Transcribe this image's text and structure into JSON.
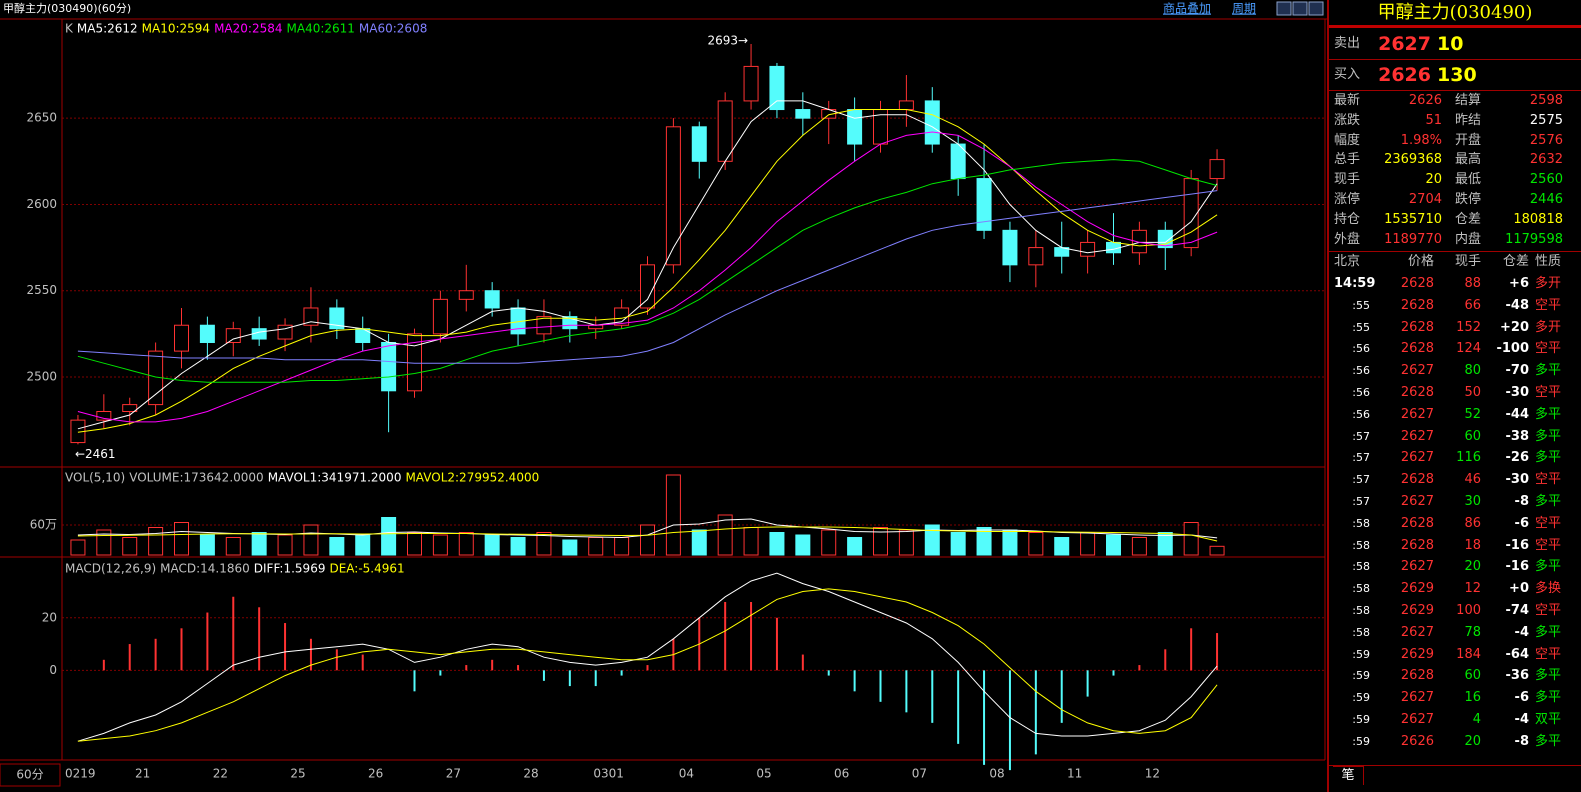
{
  "header": {
    "title": "甲醇主力(030490)(60分)",
    "links": [
      "商品叠加",
      "周期"
    ]
  },
  "chart_data": [
    {
      "type": "candlestick",
      "prefix": "K",
      "xlabel": "60分",
      "categories": [
        "0219",
        null,
        null,
        "21",
        null,
        null,
        "22",
        null,
        null,
        "25",
        null,
        null,
        "26",
        null,
        null,
        "27",
        null,
        null,
        "28",
        null,
        null,
        "0301",
        null,
        null,
        "04",
        null,
        null,
        "05",
        null,
        null,
        "06",
        null,
        null,
        "07",
        null,
        null,
        "08",
        null,
        null,
        "11",
        null,
        null,
        "12",
        null,
        null
      ],
      "open": [
        2462,
        2475,
        2480,
        2484,
        2515,
        2530,
        2520,
        2528,
        2522,
        2530,
        2540,
        2528,
        2520,
        2492,
        2525,
        2545,
        2550,
        2540,
        2525,
        2535,
        2528,
        2530,
        2540,
        2565,
        2645,
        2625,
        2660,
        2680,
        2655,
        2650,
        2655,
        2635,
        2655,
        2660,
        2635,
        2615,
        2585,
        2565,
        2575,
        2570,
        2578,
        2572,
        2585,
        2575,
        2615
      ],
      "high": [
        2478,
        2490,
        2488,
        2520,
        2540,
        2535,
        2532,
        2535,
        2534,
        2552,
        2545,
        2535,
        2525,
        2528,
        2550,
        2565,
        2555,
        2545,
        2545,
        2538,
        2535,
        2545,
        2570,
        2650,
        2648,
        2665,
        2693,
        2682,
        2665,
        2660,
        2662,
        2660,
        2675,
        2668,
        2640,
        2635,
        2590,
        2585,
        2590,
        2585,
        2595,
        2590,
        2590,
        2620,
        2632
      ],
      "low": [
        2461,
        2470,
        2472,
        2478,
        2505,
        2510,
        2512,
        2518,
        2515,
        2520,
        2522,
        2515,
        2468,
        2488,
        2520,
        2538,
        2535,
        2518,
        2520,
        2520,
        2522,
        2528,
        2536,
        2560,
        2615,
        2620,
        2655,
        2650,
        2640,
        2635,
        2625,
        2630,
        2645,
        2630,
        2605,
        2580,
        2555,
        2552,
        2560,
        2560,
        2565,
        2565,
        2562,
        2570,
        2608
      ],
      "close": [
        2475,
        2480,
        2484,
        2515,
        2530,
        2520,
        2528,
        2522,
        2530,
        2540,
        2528,
        2520,
        2492,
        2525,
        2545,
        2550,
        2540,
        2525,
        2535,
        2528,
        2530,
        2540,
        2565,
        2645,
        2625,
        2660,
        2680,
        2655,
        2650,
        2655,
        2635,
        2655,
        2660,
        2635,
        2615,
        2585,
        2565,
        2575,
        2570,
        2578,
        2572,
        2585,
        2575,
        2615,
        2626
      ],
      "up_color": "#ff3232",
      "down_color": "#54fcfc",
      "legend_color": "#c0c0c0",
      "lines": [
        {
          "name": "MA5:2612",
          "color": "#ffffff",
          "values": [
            2470,
            2474,
            2478,
            2490,
            2502,
            2512,
            2522,
            2526,
            2528,
            2532,
            2530,
            2528,
            2520,
            2518,
            2522,
            2530,
            2538,
            2540,
            2538,
            2534,
            2530,
            2532,
            2545,
            2575,
            2600,
            2625,
            2648,
            2660,
            2660,
            2655,
            2650,
            2652,
            2652,
            2645,
            2635,
            2620,
            2600,
            2585,
            2575,
            2572,
            2574,
            2578,
            2578,
            2590,
            2612
          ]
        },
        {
          "name": "MA10:2594",
          "color": "#ffff00",
          "values": [
            2468,
            2470,
            2473,
            2478,
            2486,
            2495,
            2505,
            2512,
            2518,
            2524,
            2527,
            2528,
            2526,
            2524,
            2524,
            2526,
            2530,
            2532,
            2534,
            2534,
            2533,
            2534,
            2538,
            2552,
            2568,
            2585,
            2605,
            2625,
            2640,
            2652,
            2655,
            2655,
            2655,
            2652,
            2645,
            2635,
            2622,
            2608,
            2595,
            2585,
            2578,
            2576,
            2577,
            2584,
            2594
          ]
        },
        {
          "name": "MA20:2584",
          "color": "#ff00ff",
          "values": [
            2480,
            2476,
            2474,
            2474,
            2476,
            2480,
            2486,
            2492,
            2498,
            2504,
            2510,
            2515,
            2518,
            2520,
            2522,
            2524,
            2526,
            2528,
            2529,
            2530,
            2530,
            2531,
            2533,
            2540,
            2550,
            2562,
            2575,
            2590,
            2602,
            2614,
            2625,
            2635,
            2640,
            2642,
            2640,
            2632,
            2622,
            2610,
            2600,
            2590,
            2582,
            2578,
            2576,
            2578,
            2584
          ]
        },
        {
          "name": "MA40:2611",
          "color": "#00e600",
          "values": [
            2512,
            2508,
            2504,
            2500,
            2498,
            2497,
            2497,
            2497,
            2497,
            2498,
            2498,
            2499,
            2500,
            2502,
            2505,
            2510,
            2515,
            2518,
            2521,
            2524,
            2526,
            2528,
            2531,
            2537,
            2545,
            2555,
            2565,
            2575,
            2585,
            2592,
            2598,
            2603,
            2607,
            2612,
            2615,
            2617,
            2620,
            2622,
            2624,
            2625,
            2626,
            2625,
            2620,
            2615,
            2611
          ]
        },
        {
          "name": "MA60:2608",
          "color": "#8080ff",
          "values": [
            2515,
            2514,
            2513,
            2512,
            2511,
            2511,
            2511,
            2511,
            2510,
            2510,
            2510,
            2510,
            2509,
            2508,
            2508,
            2508,
            2508,
            2508,
            2509,
            2510,
            2511,
            2512,
            2515,
            2520,
            2528,
            2536,
            2543,
            2550,
            2556,
            2562,
            2568,
            2574,
            2580,
            2585,
            2588,
            2590,
            2592,
            2594,
            2596,
            2598,
            2600,
            2602,
            2604,
            2606,
            2608
          ]
        }
      ],
      "annotations": {
        "high": "2693→",
        "low": "←2461"
      },
      "ylim": [
        2449,
        2704
      ],
      "yticks": [
        2500,
        2550,
        2600,
        2650
      ],
      "grid": true
    },
    {
      "type": "volume",
      "prefix": "VOL(5,10)",
      "series": [
        {
          "name": "VOLUME:173642.0000",
          "color": "#c0c0c0",
          "values": [
            300000,
            500000,
            350000,
            550000,
            650000,
            400000,
            350000,
            450000,
            400000,
            600000,
            350000,
            400000,
            750000,
            450000,
            400000,
            450000,
            400000,
            350000,
            450000,
            300000,
            350000,
            350000,
            600000,
            1600000,
            500000,
            800000,
            550000,
            450000,
            400000,
            500000,
            350000,
            550000,
            500000,
            600000,
            450000,
            550000,
            500000,
            450000,
            350000,
            450000,
            400000,
            350000,
            450000,
            650000,
            173642
          ]
        }
      ],
      "lines": [
        {
          "name": "MAVOL1:341971.2000",
          "color": "#ffffff",
          "values": [
            400000,
            420000,
            410000,
            430000,
            470000,
            450000,
            430000,
            420000,
            410000,
            440000,
            420000,
            400000,
            450000,
            460000,
            440000,
            430000,
            410000,
            400000,
            390000,
            370000,
            360000,
            350000,
            400000,
            600000,
            620000,
            700000,
            720000,
            600000,
            560000,
            520000,
            470000,
            460000,
            470000,
            500000,
            490000,
            500000,
            500000,
            480000,
            450000,
            440000,
            420000,
            400000,
            390000,
            400000,
            341971.2
          ]
        },
        {
          "name": "MAVOL2:279952.4000",
          "color": "#ffff00",
          "values": [
            380000,
            390000,
            395000,
            400000,
            410000,
            420000,
            425000,
            425000,
            420000,
            420000,
            425000,
            420000,
            425000,
            430000,
            430000,
            430000,
            420000,
            415000,
            410000,
            400000,
            395000,
            390000,
            395000,
            450000,
            480000,
            520000,
            550000,
            560000,
            560000,
            560000,
            550000,
            530000,
            510000,
            490000,
            480000,
            470000,
            470000,
            470000,
            460000,
            455000,
            450000,
            440000,
            430000,
            400000,
            279952.4
          ]
        }
      ],
      "ylim": [
        0,
        1700000
      ],
      "yticks": [
        {
          "value": 600000,
          "label": "60万"
        }
      ],
      "grid": true
    },
    {
      "type": "macd",
      "prefix": "MACD(12,26,9)",
      "lines": [
        {
          "name": "DIFF:1.5969",
          "color": "#ffffff",
          "values": [
            -27,
            -24,
            -20,
            -17,
            -12,
            -5,
            2,
            5,
            7,
            8,
            9,
            10,
            8,
            3,
            5,
            8,
            10,
            9,
            5,
            3,
            2,
            3,
            5,
            12,
            20,
            28,
            34,
            37,
            33,
            30,
            26,
            22,
            18,
            12,
            3,
            -8,
            -18,
            -24,
            -25,
            -25,
            -24,
            -23,
            -19,
            -10,
            1.5969
          ]
        },
        {
          "name": "DEA:-5.4961",
          "color": "#ffff00",
          "values": [
            -27,
            -26,
            -25,
            -23,
            -20,
            -16,
            -12,
            -7,
            -2,
            2,
            5,
            7,
            8,
            7,
            6,
            7,
            8,
            8,
            7,
            6,
            5,
            4,
            4,
            6,
            10,
            15,
            21,
            27,
            30,
            31,
            30,
            28,
            26,
            22,
            17,
            10,
            1,
            -8,
            -15,
            -20,
            -23,
            -24,
            -23,
            -18,
            -5.4961
          ]
        }
      ],
      "series": [
        {
          "name": "MACD:14.1860",
          "color": "#c0c0c0",
          "values": [
            0,
            4,
            10,
            12,
            16,
            22,
            28,
            24,
            18,
            12,
            8,
            6,
            0,
            -8,
            -2,
            2,
            4,
            2,
            -4,
            -6,
            -6,
            -2,
            2,
            12,
            20,
            26,
            26,
            20,
            6,
            -2,
            -8,
            -12,
            -16,
            -20,
            -28,
            -36,
            -38,
            -32,
            -20,
            -10,
            -2,
            2,
            8,
            16,
            14.186
          ]
        }
      ],
      "up_color": "#ff3232",
      "down_color": "#54fcfc",
      "ylim": [
        -33,
        42
      ],
      "yticks": [
        0,
        20
      ],
      "grid": true
    }
  ],
  "quote": {
    "title": "甲醇主力(030490)",
    "ask": {
      "label": "卖出",
      "price": 2627,
      "qty": 10
    },
    "bid": {
      "label": "买入",
      "price": 2626,
      "qty": 130
    },
    "stats": [
      [
        "最新",
        2626,
        "结算",
        2598
      ],
      [
        "涨跌",
        51,
        "昨结",
        2575
      ],
      [
        "幅度",
        "1.98%",
        "开盘",
        2576
      ],
      [
        "总手",
        2369368,
        "最高",
        2632
      ],
      [
        "现手",
        20,
        "最低",
        2560
      ],
      [
        "涨停",
        2704,
        "跌停",
        2446
      ],
      [
        "持仓",
        1535710,
        "仓差",
        180818
      ],
      [
        "外盘",
        1189770,
        "内盘",
        1179598
      ]
    ],
    "stat_colors": [
      [
        "#ff3232",
        "#ff3232"
      ],
      [
        "#ff3232",
        "#ffffff"
      ],
      [
        "#ff3232",
        "#ff3232"
      ],
      [
        "#ffff00",
        "#ff3232"
      ],
      [
        "#ffff00",
        "#00e600"
      ],
      [
        "#ff3232",
        "#00e600"
      ],
      [
        "#ffff00",
        "#ffff00"
      ],
      [
        "#ff3232",
        "#00e600"
      ]
    ]
  },
  "trades": {
    "headers": [
      "北京",
      "价格",
      "现手",
      "仓差",
      "性质"
    ],
    "rows": [
      [
        "14:59",
        2628,
        88,
        "+6",
        "多开"
      ],
      [
        ":55",
        2628,
        66,
        "-48",
        "空平"
      ],
      [
        ":55",
        2628,
        152,
        "+20",
        "多开"
      ],
      [
        ":56",
        2628,
        124,
        "-100",
        "空平"
      ],
      [
        ":56",
        2627,
        80,
        "-70",
        "多平"
      ],
      [
        ":56",
        2628,
        50,
        "-30",
        "空平"
      ],
      [
        ":56",
        2627,
        52,
        "-44",
        "多平"
      ],
      [
        ":57",
        2627,
        60,
        "-38",
        "多平"
      ],
      [
        ":57",
        2627,
        116,
        "-26",
        "多平"
      ],
      [
        ":57",
        2628,
        46,
        "-30",
        "空平"
      ],
      [
        ":57",
        2627,
        30,
        "-8",
        "多平"
      ],
      [
        ":58",
        2628,
        86,
        "-6",
        "空平"
      ],
      [
        ":58",
        2628,
        18,
        "-16",
        "空平"
      ],
      [
        ":58",
        2627,
        20,
        "-16",
        "多平"
      ],
      [
        ":58",
        2629,
        12,
        "+0",
        "多换"
      ],
      [
        ":58",
        2629,
        100,
        "-74",
        "空平"
      ],
      [
        ":58",
        2627,
        78,
        "-4",
        "多平"
      ],
      [
        ":59",
        2629,
        184,
        "-64",
        "空平"
      ],
      [
        ":59",
        2628,
        60,
        "-36",
        "多平"
      ],
      [
        ":59",
        2627,
        16,
        "-6",
        "多平"
      ],
      [
        ":59",
        2627,
        4,
        "-4",
        "双平"
      ],
      [
        ":59",
        2626,
        20,
        "-8",
        "多平"
      ]
    ],
    "row_colors": [
      "#ff3232",
      "#ff3232",
      "#ff3232",
      "#ff3232",
      "#00e600",
      "#ff3232",
      "#00e600",
      "#00e600",
      "#00e600",
      "#ff3232",
      "#00e600",
      "#ff3232",
      "#ff3232",
      "#00e600",
      "#ff3232",
      "#ff3232",
      "#00e600",
      "#ff3232",
      "#00e600",
      "#00e600",
      "#00e600",
      "#00e600"
    ],
    "tab": "笔"
  }
}
